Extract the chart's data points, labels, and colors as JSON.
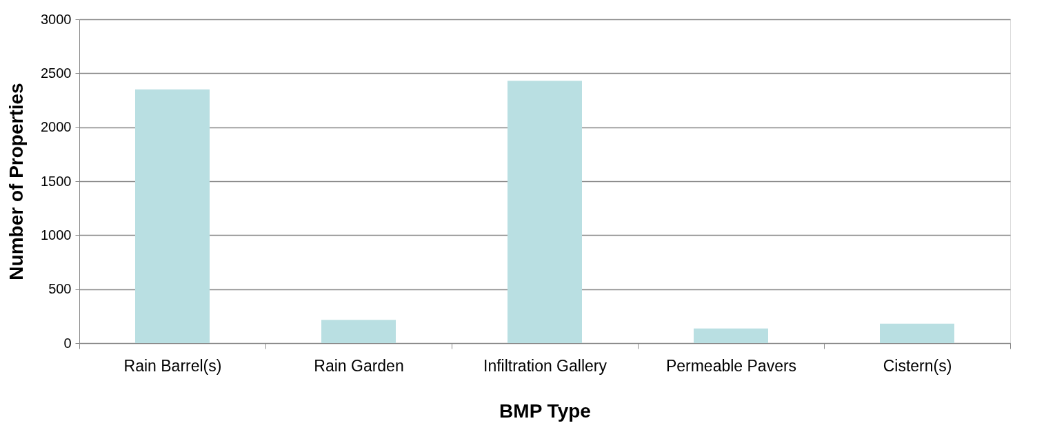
{
  "chart_data": {
    "type": "bar",
    "xlabel": "BMP Type",
    "ylabel": "Number of Properties",
    "categories": [
      "Rain Barrel(s)",
      "Rain Garden",
      "Infiltration Gallery",
      "Permeable Pavers",
      "Cistern(s)"
    ],
    "values": [
      2350,
      215,
      2430,
      135,
      180
    ],
    "color": "#b9dfe2",
    "ylim": [
      0,
      3000
    ],
    "yticks": [
      0,
      500,
      1000,
      1500,
      2000,
      2500,
      3000
    ],
    "grid": "y"
  }
}
